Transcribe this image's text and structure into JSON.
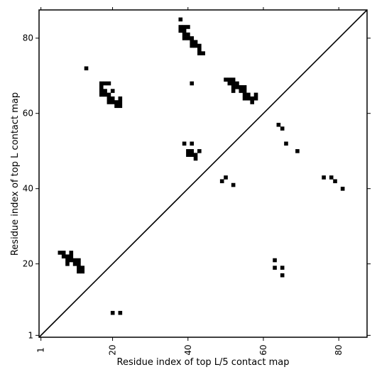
{
  "chart_data": {
    "type": "scatter",
    "xlabel": "Residue index of top L/5 contact map",
    "ylabel": "Residue index of top L contact map",
    "xlim": [
      0.5,
      87.5
    ],
    "ylim": [
      0.5,
      87.5
    ],
    "x_ticks": [
      1,
      20,
      40,
      60,
      80
    ],
    "y_ticks": [
      1,
      20,
      40,
      60,
      80
    ],
    "x_tick_labels": [
      "1",
      "20",
      "40",
      "60",
      "80"
    ],
    "y_tick_labels": [
      "1",
      "20",
      "40",
      "60",
      "80"
    ],
    "x_tick_rotation": -90,
    "grid": false,
    "legend": "none",
    "marker_color": "#000000",
    "diagonal": {
      "from": [
        0.5,
        0.5
      ],
      "to": [
        87.5,
        87.5
      ]
    },
    "lower_triangle_points": [
      [
        20,
        7
      ],
      [
        22,
        7
      ],
      [
        63,
        19
      ],
      [
        65,
        19
      ],
      [
        63,
        21
      ],
      [
        65,
        17
      ],
      [
        49,
        42
      ],
      [
        50,
        43
      ],
      [
        52,
        41
      ],
      [
        76,
        43
      ],
      [
        78,
        43
      ],
      [
        79,
        42
      ],
      [
        81,
        40
      ],
      [
        69,
        50
      ],
      [
        66,
        52
      ],
      [
        64,
        57
      ],
      [
        65,
        56
      ]
    ],
    "upper_triangle_points": [
      [
        6,
        23
      ],
      [
        7,
        23
      ],
      [
        7,
        22
      ],
      [
        8,
        22
      ],
      [
        8,
        21
      ],
      [
        8,
        20
      ],
      [
        9,
        22
      ],
      [
        9,
        21
      ],
      [
        9,
        23
      ],
      [
        10,
        21
      ],
      [
        10,
        20
      ],
      [
        11,
        21
      ],
      [
        11,
        20
      ],
      [
        11,
        19
      ],
      [
        11,
        18
      ],
      [
        12,
        19
      ],
      [
        12,
        18
      ],
      [
        13,
        72
      ],
      [
        17,
        68
      ],
      [
        18,
        68
      ],
      [
        19,
        68
      ],
      [
        17,
        67
      ],
      [
        18,
        66
      ],
      [
        17,
        66
      ],
      [
        18,
        65
      ],
      [
        17,
        65
      ],
      [
        19,
        65
      ],
      [
        19,
        64
      ],
      [
        20,
        64
      ],
      [
        20,
        66
      ],
      [
        19,
        63
      ],
      [
        20,
        63
      ],
      [
        21,
        63
      ],
      [
        21,
        62
      ],
      [
        22,
        62
      ],
      [
        22,
        63
      ],
      [
        22,
        64
      ],
      [
        38,
        85
      ],
      [
        38,
        83
      ],
      [
        38,
        82
      ],
      [
        39,
        83
      ],
      [
        39,
        82
      ],
      [
        40,
        83
      ],
      [
        39,
        81
      ],
      [
        40,
        81
      ],
      [
        39,
        80
      ],
      [
        40,
        80
      ],
      [
        41,
        80
      ],
      [
        41,
        79
      ],
      [
        41,
        78
      ],
      [
        42,
        79
      ],
      [
        42,
        78
      ],
      [
        43,
        78
      ],
      [
        43,
        77
      ],
      [
        43,
        76
      ],
      [
        44,
        76
      ],
      [
        41,
        68
      ],
      [
        39,
        52
      ],
      [
        41,
        52
      ],
      [
        40,
        50
      ],
      [
        41,
        50
      ],
      [
        40,
        49
      ],
      [
        41,
        49
      ],
      [
        42,
        49
      ],
      [
        42,
        48
      ],
      [
        43,
        50
      ],
      [
        50,
        69
      ],
      [
        51,
        69
      ],
      [
        52,
        69
      ],
      [
        51,
        68
      ],
      [
        52,
        68
      ],
      [
        53,
        68
      ],
      [
        52,
        67
      ],
      [
        53,
        67
      ],
      [
        54,
        67
      ],
      [
        55,
        67
      ],
      [
        52,
        66
      ],
      [
        54,
        66
      ],
      [
        55,
        66
      ],
      [
        55,
        65
      ],
      [
        56,
        65
      ],
      [
        55,
        64
      ],
      [
        56,
        64
      ],
      [
        57,
        64
      ],
      [
        58,
        64
      ],
      [
        58,
        65
      ],
      [
        57,
        63
      ]
    ]
  }
}
